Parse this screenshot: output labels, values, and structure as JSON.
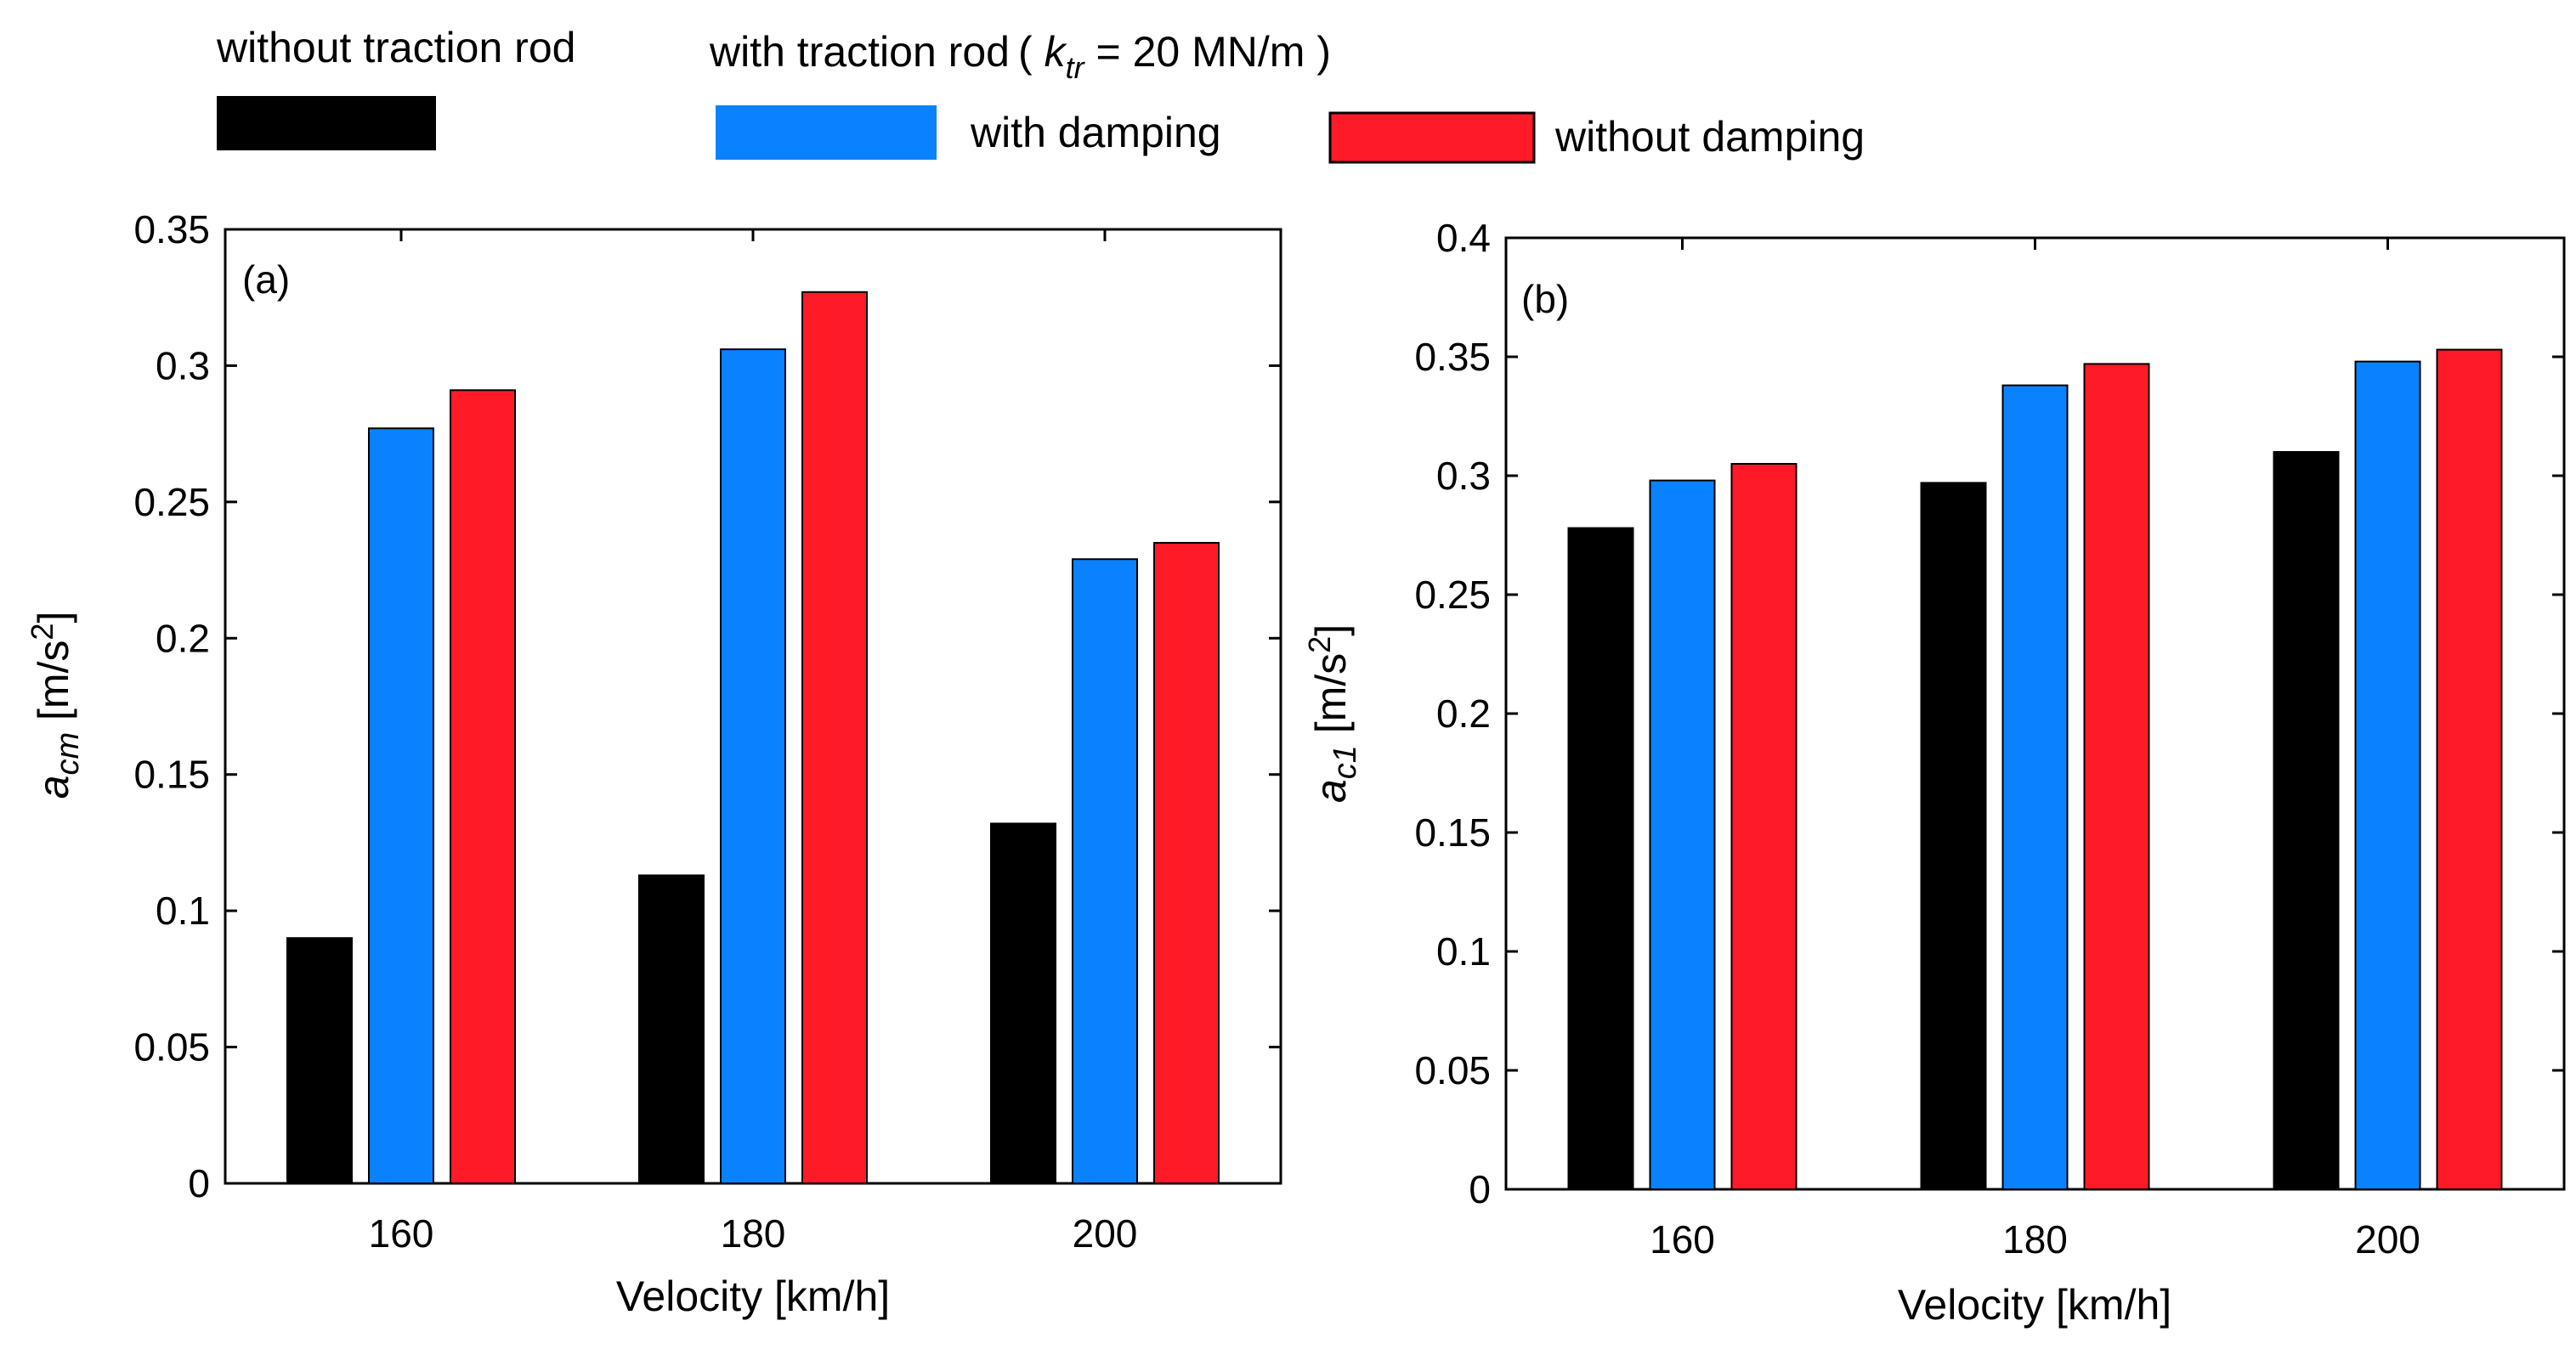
{
  "legend": {
    "items": [
      {
        "label": "without traction rod",
        "color": "#000000"
      },
      {
        "label": "with damping",
        "color": "#0a82ff"
      },
      {
        "label": "without damping",
        "color": "#ff1a27"
      }
    ],
    "group_title": {
      "prefix": "with traction rod",
      "open": "(",
      "k": "k",
      "sub": "tr",
      "eq": " = 20 MN/m",
      "close": ")"
    }
  },
  "chart_data": [
    {
      "type": "bar",
      "panel_label": "(a)",
      "categories": [
        "160",
        "180",
        "200"
      ],
      "series": [
        {
          "name": "without traction rod",
          "color": "#000000",
          "values": [
            0.09,
            0.113,
            0.132
          ]
        },
        {
          "name": "with damping",
          "color": "#0a82ff",
          "values": [
            0.277,
            0.306,
            0.229
          ]
        },
        {
          "name": "without damping",
          "color": "#ff1a27",
          "values": [
            0.291,
            0.327,
            0.235
          ]
        }
      ],
      "xlabel": "Velocity [km/h]",
      "ylabel": {
        "base": "a",
        "sub": "cm",
        "rest": " [m/s",
        "sup": "2",
        "close": "]"
      },
      "ylim": [
        0,
        0.35
      ],
      "yticks": [
        "0",
        "0.05",
        "0.1",
        "0.15",
        "0.2",
        "0.25",
        "0.3",
        "0.35"
      ],
      "grid": false,
      "legend_placement": "top"
    },
    {
      "type": "bar",
      "panel_label": "(b)",
      "categories": [
        "160",
        "180",
        "200"
      ],
      "series": [
        {
          "name": "without traction rod",
          "color": "#000000",
          "values": [
            0.278,
            0.297,
            0.31
          ]
        },
        {
          "name": "with damping",
          "color": "#0a82ff",
          "values": [
            0.298,
            0.338,
            0.348
          ]
        },
        {
          "name": "without damping",
          "color": "#ff1a27",
          "values": [
            0.305,
            0.347,
            0.353
          ]
        }
      ],
      "xlabel": "Velocity [km/h]",
      "ylabel": {
        "base": "a",
        "sub": "c1",
        "rest": " [m/s",
        "sup": "2",
        "close": "]"
      },
      "ylim": [
        0,
        0.4
      ],
      "yticks": [
        "0",
        "0.05",
        "0.1",
        "0.15",
        "0.2",
        "0.25",
        "0.3",
        "0.35",
        "0.4"
      ],
      "grid": false,
      "legend_placement": "top"
    }
  ]
}
